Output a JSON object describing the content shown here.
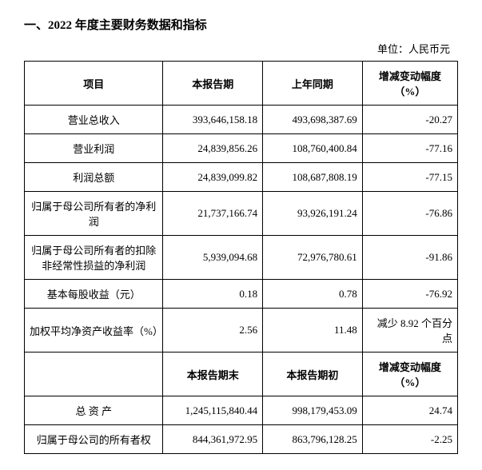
{
  "title": "一、2022 年度主要财务数据和指标",
  "unit_label": "单位：人民币元",
  "header1": {
    "item": "项目",
    "col1": "本报告期",
    "col2": "上年同期",
    "col3": "增减变动幅度（%）"
  },
  "rows1": [
    {
      "label": "营业总收入",
      "v1": "393,646,158.18",
      "v2": "493,698,387.69",
      "v3": "-20.27"
    },
    {
      "label": "营业利润",
      "v1": "24,839,856.26",
      "v2": "108,760,400.84",
      "v3": "-77.16"
    },
    {
      "label": "利润总额",
      "v1": "24,839,099.82",
      "v2": "108,687,808.19",
      "v3": "-77.15"
    },
    {
      "label": "归属于母公司所有者的净利润",
      "v1": "21,737,166.74",
      "v2": "93,926,191.24",
      "v3": "-76.86"
    },
    {
      "label": "归属于母公司所有者的扣除非经常性损益的净利润",
      "v1": "5,939,094.68",
      "v2": "72,976,780.61",
      "v3": "-91.86"
    },
    {
      "label": "基本每股收益（元）",
      "v1": "0.18",
      "v2": "0.78",
      "v3": "-76.92"
    },
    {
      "label": "加权平均净资产收益率（%）",
      "v1": "2.56",
      "v2": "11.48",
      "v3": "减少 8.92 个百分点"
    }
  ],
  "header2": {
    "item": "",
    "col1": "本报告期末",
    "col2": "本报告期初",
    "col3": "增减变动幅度（%）"
  },
  "rows2": [
    {
      "label": "总 资 产",
      "v1": "1,245,115,840.44",
      "v2": "998,179,453.09",
      "v3": "24.74"
    },
    {
      "label": "归属于母公司的所有者权",
      "v1": "844,361,972.95",
      "v2": "863,796,128.25",
      "v3": "-2.25"
    }
  ],
  "style": {
    "font_family": "SimSun",
    "border_color": "#000000",
    "background": "#ffffff",
    "text_color": "#000000",
    "title_fontsize": 15,
    "body_fontsize": 13
  }
}
